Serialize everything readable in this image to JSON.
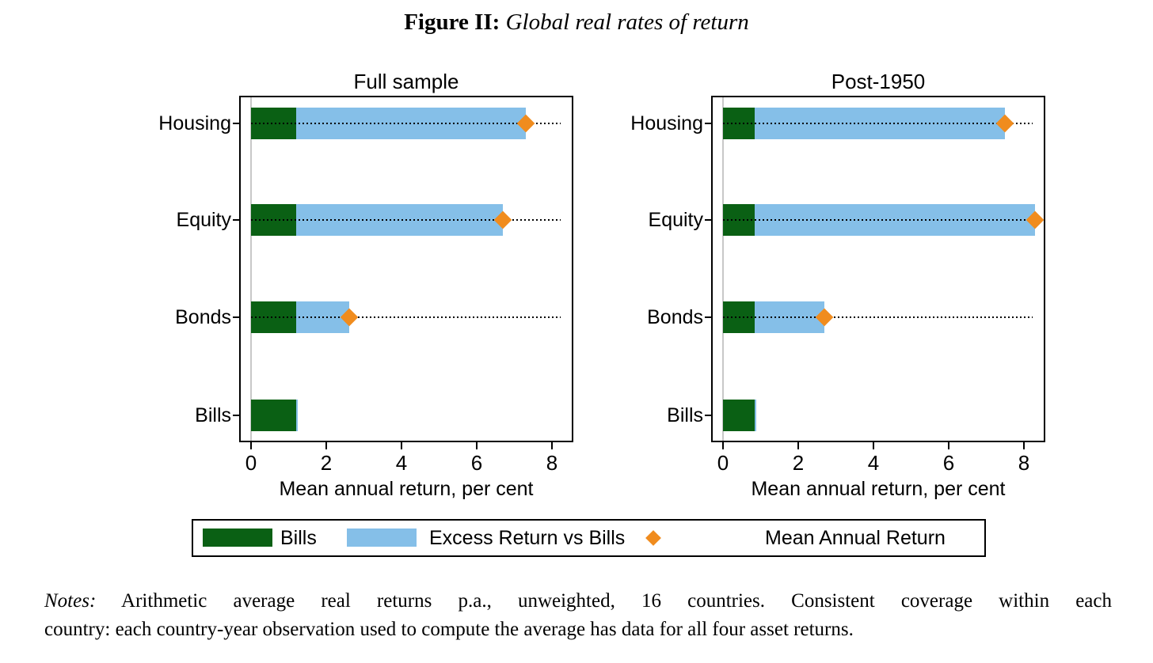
{
  "title": {
    "label": "Figure II:",
    "text": "Global real rates of return"
  },
  "legend": {
    "bills_label": "Bills",
    "excess_label": "Excess Return vs Bills",
    "marker_label": "Mean Annual Return"
  },
  "colors": {
    "bills": "#0a6014",
    "excess": "#85bfe8",
    "marker": "#f08c1e",
    "zero_line": "#c8c8c8"
  },
  "notes": {
    "label": "Notes:",
    "line1": "Arithmetic average real returns p.a., unweighted, 16 countries.  Consistent coverage within each",
    "line2": "country: each country-year observation used to compute the average has data for all four asset returns."
  },
  "chart_data": [
    {
      "type": "bar",
      "orientation": "horizontal",
      "title": "Full sample",
      "categories": [
        "Housing",
        "Equity",
        "Bonds",
        "Bills"
      ],
      "series": [
        {
          "name": "Bills",
          "values": [
            1.2,
            1.2,
            1.2,
            1.2
          ]
        },
        {
          "name": "Excess Return vs Bills",
          "values": [
            6.1,
            5.5,
            1.4,
            0
          ]
        }
      ],
      "markers": {
        "name": "Mean Annual Return",
        "values": [
          7.3,
          6.7,
          2.6,
          null
        ]
      },
      "xlabel": "Mean annual return, per cent",
      "xticks": [
        "0",
        "2",
        "4",
        "6",
        "8"
      ],
      "xlim": [
        -0.28,
        8.6
      ],
      "grid": "dotted-row-guides"
    },
    {
      "type": "bar",
      "orientation": "horizontal",
      "title": "Post-1950",
      "categories": [
        "Housing",
        "Equity",
        "Bonds",
        "Bills"
      ],
      "series": [
        {
          "name": "Bills",
          "values": [
            0.85,
            0.85,
            0.85,
            0.85
          ]
        },
        {
          "name": "Excess Return vs Bills",
          "values": [
            6.65,
            7.45,
            1.85,
            0
          ]
        }
      ],
      "markers": {
        "name": "Mean Annual Return",
        "values": [
          7.5,
          8.3,
          2.7,
          null
        ]
      },
      "xlabel": "Mean annual return, per cent",
      "xticks": [
        "0",
        "2",
        "4",
        "6",
        "8"
      ],
      "xlim": [
        -0.28,
        8.6
      ],
      "grid": "dotted-row-guides"
    }
  ]
}
